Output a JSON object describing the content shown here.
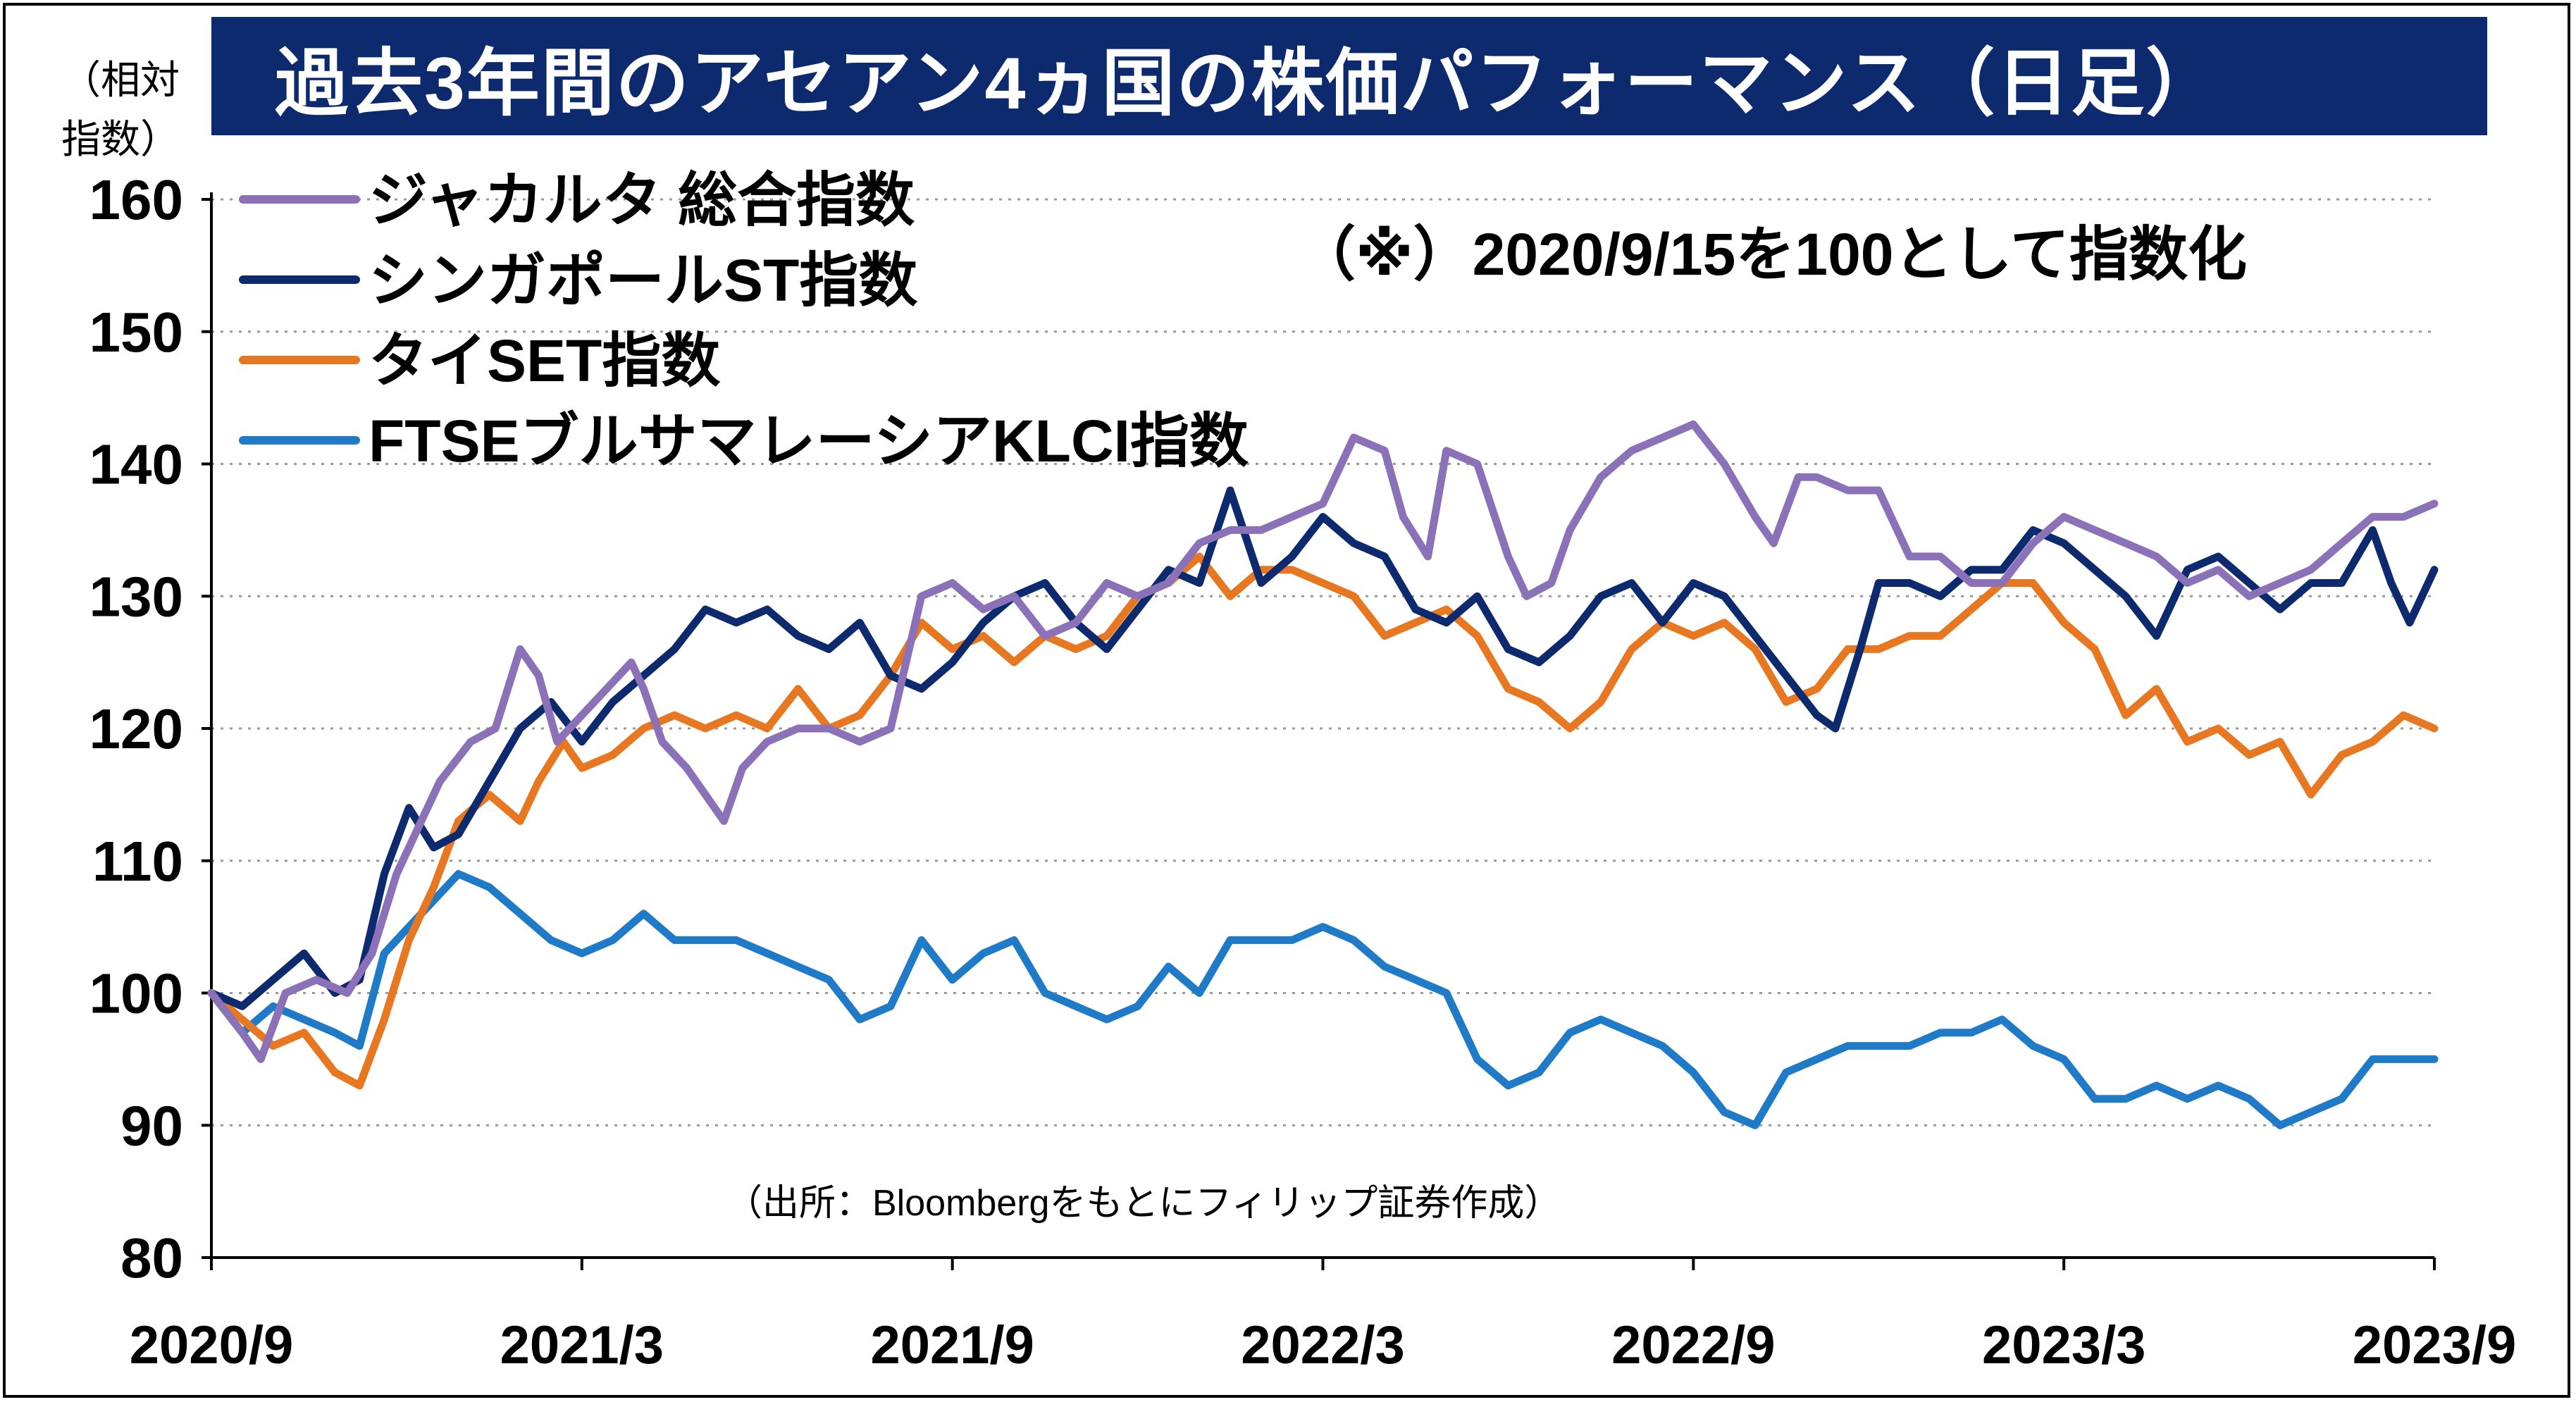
{
  "chart_data": {
    "type": "line",
    "title": "過去3年間のアセアン4ヵ国の株価パフォーマンス（日足）",
    "ylabel": "（相対指数）",
    "ylabel_lines": [
      "（相対",
      "指数）"
    ],
    "note": "（※）2020/9/15を100として指数化",
    "source": "（出所：Bloombergをもとにフィリップ証券作成）",
    "ylim": [
      80,
      160
    ],
    "yticks": [
      80,
      90,
      100,
      110,
      120,
      130,
      140,
      150,
      160
    ],
    "x_tick_labels": [
      "2020/9",
      "2021/3",
      "2021/9",
      "2022/3",
      "2022/9",
      "2023/3",
      "2023/9"
    ],
    "x_range_months": [
      0,
      36
    ],
    "grid": "horizontal-dotted",
    "legend_position": "top-left",
    "series": [
      {
        "name": "ジャカルタ 総合指数",
        "color": "#8b72b8",
        "points": [
          [
            0,
            100
          ],
          [
            0.5,
            97
          ],
          [
            0.8,
            95
          ],
          [
            1.2,
            100
          ],
          [
            1.7,
            101
          ],
          [
            2.2,
            100
          ],
          [
            2.6,
            103
          ],
          [
            3,
            109
          ],
          [
            3.3,
            112
          ],
          [
            3.7,
            116
          ],
          [
            4.2,
            119
          ],
          [
            4.6,
            120
          ],
          [
            5,
            126
          ],
          [
            5.3,
            124
          ],
          [
            5.6,
            119
          ],
          [
            6,
            121
          ],
          [
            6.4,
            123
          ],
          [
            6.8,
            125
          ],
          [
            7,
            123
          ],
          [
            7.3,
            119
          ],
          [
            7.7,
            117
          ],
          [
            8,
            115
          ],
          [
            8.3,
            113
          ],
          [
            8.6,
            117
          ],
          [
            9,
            119
          ],
          [
            9.5,
            120
          ],
          [
            10,
            120
          ],
          [
            10.5,
            119
          ],
          [
            11,
            120
          ],
          [
            11.5,
            130
          ],
          [
            12,
            131
          ],
          [
            12.5,
            129
          ],
          [
            13,
            130
          ],
          [
            13.5,
            127
          ],
          [
            14,
            128
          ],
          [
            14.5,
            131
          ],
          [
            15,
            130
          ],
          [
            15.5,
            131
          ],
          [
            16,
            134
          ],
          [
            16.5,
            135
          ],
          [
            17,
            135
          ],
          [
            17.5,
            136
          ],
          [
            18,
            137
          ],
          [
            18.5,
            142
          ],
          [
            19,
            141
          ],
          [
            19.3,
            136
          ],
          [
            19.7,
            133
          ],
          [
            20,
            141
          ],
          [
            20.5,
            140
          ],
          [
            21,
            133
          ],
          [
            21.3,
            130
          ],
          [
            21.7,
            131
          ],
          [
            22,
            135
          ],
          [
            22.5,
            139
          ],
          [
            23,
            141
          ],
          [
            23.5,
            142
          ],
          [
            24,
            143
          ],
          [
            24.5,
            140
          ],
          [
            25,
            136
          ],
          [
            25.3,
            134
          ],
          [
            25.7,
            139
          ],
          [
            26,
            139
          ],
          [
            26.5,
            138
          ],
          [
            27,
            138
          ],
          [
            27.5,
            133
          ],
          [
            28,
            133
          ],
          [
            28.5,
            131
          ],
          [
            29,
            131
          ],
          [
            29.5,
            134
          ],
          [
            30,
            136
          ],
          [
            30.5,
            135
          ],
          [
            31,
            134
          ],
          [
            31.5,
            133
          ],
          [
            32,
            131
          ],
          [
            32.5,
            132
          ],
          [
            33,
            130
          ],
          [
            33.5,
            131
          ],
          [
            34,
            132
          ],
          [
            34.5,
            134
          ],
          [
            35,
            136
          ],
          [
            35.5,
            136
          ],
          [
            36,
            137
          ]
        ]
      },
      {
        "name": "シンガポールST指数",
        "color": "#0d2a6e",
        "points": [
          [
            0,
            100
          ],
          [
            0.5,
            99
          ],
          [
            1,
            101
          ],
          [
            1.5,
            103
          ],
          [
            2,
            100
          ],
          [
            2.4,
            101
          ],
          [
            2.8,
            109
          ],
          [
            3.2,
            114
          ],
          [
            3.6,
            111
          ],
          [
            4,
            112
          ],
          [
            4.5,
            116
          ],
          [
            5,
            120
          ],
          [
            5.5,
            122
          ],
          [
            6,
            119
          ],
          [
            6.5,
            122
          ],
          [
            7,
            124
          ],
          [
            7.5,
            126
          ],
          [
            8,
            129
          ],
          [
            8.5,
            128
          ],
          [
            9,
            129
          ],
          [
            9.5,
            127
          ],
          [
            10,
            126
          ],
          [
            10.5,
            128
          ],
          [
            11,
            124
          ],
          [
            11.5,
            123
          ],
          [
            12,
            125
          ],
          [
            12.5,
            128
          ],
          [
            13,
            130
          ],
          [
            13.5,
            131
          ],
          [
            14,
            128
          ],
          [
            14.5,
            126
          ],
          [
            15,
            129
          ],
          [
            15.5,
            132
          ],
          [
            16,
            131
          ],
          [
            16.5,
            138
          ],
          [
            17,
            131
          ],
          [
            17.5,
            133
          ],
          [
            18,
            136
          ],
          [
            18.5,
            134
          ],
          [
            19,
            133
          ],
          [
            19.5,
            129
          ],
          [
            20,
            128
          ],
          [
            20.5,
            130
          ],
          [
            21,
            126
          ],
          [
            21.5,
            125
          ],
          [
            22,
            127
          ],
          [
            22.5,
            130
          ],
          [
            23,
            131
          ],
          [
            23.5,
            128
          ],
          [
            24,
            131
          ],
          [
            24.5,
            130
          ],
          [
            25,
            127
          ],
          [
            25.5,
            124
          ],
          [
            26,
            121
          ],
          [
            26.3,
            120
          ],
          [
            26.7,
            126
          ],
          [
            27,
            131
          ],
          [
            27.5,
            131
          ],
          [
            28,
            130
          ],
          [
            28.5,
            132
          ],
          [
            29,
            132
          ],
          [
            29.5,
            135
          ],
          [
            30,
            134
          ],
          [
            30.5,
            132
          ],
          [
            31,
            130
          ],
          [
            31.5,
            127
          ],
          [
            32,
            132
          ],
          [
            32.5,
            133
          ],
          [
            33,
            131
          ],
          [
            33.5,
            129
          ],
          [
            34,
            131
          ],
          [
            34.5,
            131
          ],
          [
            35,
            135
          ],
          [
            35.3,
            131
          ],
          [
            35.6,
            128
          ],
          [
            36,
            132
          ]
        ]
      },
      {
        "name": "タイSET指数",
        "color": "#e87722",
        "points": [
          [
            0,
            100
          ],
          [
            0.5,
            98
          ],
          [
            1,
            96
          ],
          [
            1.5,
            97
          ],
          [
            2,
            94
          ],
          [
            2.4,
            93
          ],
          [
            2.8,
            98
          ],
          [
            3.2,
            104
          ],
          [
            3.6,
            108
          ],
          [
            4,
            113
          ],
          [
            4.5,
            115
          ],
          [
            5,
            113
          ],
          [
            5.3,
            116
          ],
          [
            5.7,
            119
          ],
          [
            6,
            117
          ],
          [
            6.5,
            118
          ],
          [
            7,
            120
          ],
          [
            7.5,
            121
          ],
          [
            8,
            120
          ],
          [
            8.5,
            121
          ],
          [
            9,
            120
          ],
          [
            9.5,
            123
          ],
          [
            10,
            120
          ],
          [
            10.5,
            121
          ],
          [
            11,
            124
          ],
          [
            11.5,
            128
          ],
          [
            12,
            126
          ],
          [
            12.5,
            127
          ],
          [
            13,
            125
          ],
          [
            13.5,
            127
          ],
          [
            14,
            126
          ],
          [
            14.5,
            127
          ],
          [
            15,
            130
          ],
          [
            15.5,
            131
          ],
          [
            16,
            133
          ],
          [
            16.5,
            130
          ],
          [
            17,
            132
          ],
          [
            17.5,
            132
          ],
          [
            18,
            131
          ],
          [
            18.5,
            130
          ],
          [
            19,
            127
          ],
          [
            19.5,
            128
          ],
          [
            20,
            129
          ],
          [
            20.5,
            127
          ],
          [
            21,
            123
          ],
          [
            21.5,
            122
          ],
          [
            22,
            120
          ],
          [
            22.5,
            122
          ],
          [
            23,
            126
          ],
          [
            23.5,
            128
          ],
          [
            24,
            127
          ],
          [
            24.5,
            128
          ],
          [
            25,
            126
          ],
          [
            25.5,
            122
          ],
          [
            26,
            123
          ],
          [
            26.5,
            126
          ],
          [
            27,
            126
          ],
          [
            27.5,
            127
          ],
          [
            28,
            127
          ],
          [
            28.5,
            129
          ],
          [
            29,
            131
          ],
          [
            29.5,
            131
          ],
          [
            30,
            128
          ],
          [
            30.5,
            126
          ],
          [
            31,
            121
          ],
          [
            31.5,
            123
          ],
          [
            32,
            119
          ],
          [
            32.5,
            120
          ],
          [
            33,
            118
          ],
          [
            33.5,
            119
          ],
          [
            34,
            115
          ],
          [
            34.5,
            118
          ],
          [
            35,
            119
          ],
          [
            35.5,
            121
          ],
          [
            36,
            120
          ]
        ]
      },
      {
        "name": "FTSEブルサマレーシアKLCI指数",
        "color": "#1f7ac7",
        "points": [
          [
            0,
            100
          ],
          [
            0.5,
            97
          ],
          [
            1,
            99
          ],
          [
            1.5,
            98
          ],
          [
            2,
            97
          ],
          [
            2.4,
            96
          ],
          [
            2.8,
            103
          ],
          [
            3.2,
            105
          ],
          [
            3.6,
            107
          ],
          [
            4,
            109
          ],
          [
            4.5,
            108
          ],
          [
            5,
            106
          ],
          [
            5.5,
            104
          ],
          [
            6,
            103
          ],
          [
            6.5,
            104
          ],
          [
            7,
            106
          ],
          [
            7.5,
            104
          ],
          [
            8,
            104
          ],
          [
            8.5,
            104
          ],
          [
            9,
            103
          ],
          [
            9.5,
            102
          ],
          [
            10,
            101
          ],
          [
            10.5,
            98
          ],
          [
            11,
            99
          ],
          [
            11.5,
            104
          ],
          [
            12,
            101
          ],
          [
            12.5,
            103
          ],
          [
            13,
            104
          ],
          [
            13.5,
            100
          ],
          [
            14,
            99
          ],
          [
            14.5,
            98
          ],
          [
            15,
            99
          ],
          [
            15.5,
            102
          ],
          [
            16,
            100
          ],
          [
            16.5,
            104
          ],
          [
            17,
            104
          ],
          [
            17.5,
            104
          ],
          [
            18,
            105
          ],
          [
            18.5,
            104
          ],
          [
            19,
            102
          ],
          [
            19.5,
            101
          ],
          [
            20,
            100
          ],
          [
            20.5,
            95
          ],
          [
            21,
            93
          ],
          [
            21.5,
            94
          ],
          [
            22,
            97
          ],
          [
            22.5,
            98
          ],
          [
            23,
            97
          ],
          [
            23.5,
            96
          ],
          [
            24,
            94
          ],
          [
            24.5,
            91
          ],
          [
            25,
            90
          ],
          [
            25.5,
            94
          ],
          [
            26,
            95
          ],
          [
            26.5,
            96
          ],
          [
            27,
            96
          ],
          [
            27.5,
            96
          ],
          [
            28,
            97
          ],
          [
            28.5,
            97
          ],
          [
            29,
            98
          ],
          [
            29.5,
            96
          ],
          [
            30,
            95
          ],
          [
            30.5,
            92
          ],
          [
            31,
            92
          ],
          [
            31.5,
            93
          ],
          [
            32,
            92
          ],
          [
            32.5,
            93
          ],
          [
            33,
            92
          ],
          [
            33.5,
            90
          ],
          [
            34,
            91
          ],
          [
            34.5,
            92
          ],
          [
            35,
            95
          ],
          [
            35.5,
            95
          ],
          [
            36,
            95
          ]
        ]
      }
    ]
  }
}
